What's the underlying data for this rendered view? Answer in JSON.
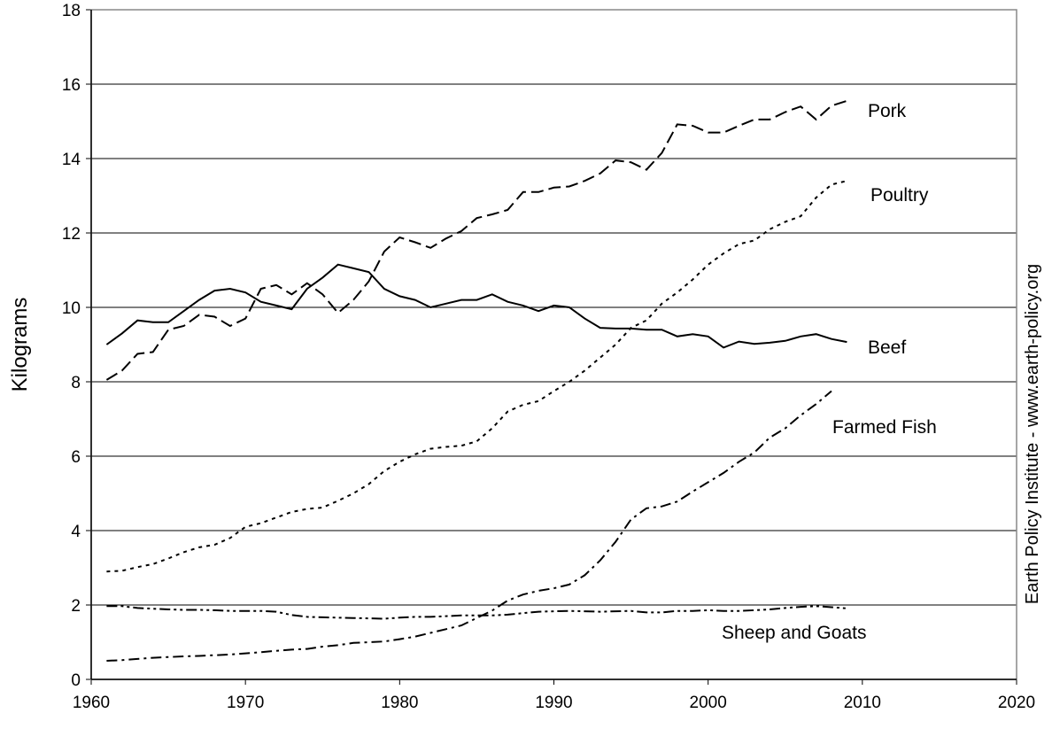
{
  "chart_data": {
    "type": "line",
    "y_label": "Kilograms",
    "source": "Earth Policy Institute - www.earth-policy.org",
    "x": [
      1961,
      1962,
      1963,
      1964,
      1965,
      1966,
      1967,
      1968,
      1969,
      1970,
      1971,
      1972,
      1973,
      1974,
      1975,
      1976,
      1977,
      1978,
      1979,
      1980,
      1981,
      1982,
      1983,
      1984,
      1985,
      1986,
      1987,
      1988,
      1989,
      1990,
      1991,
      1992,
      1993,
      1994,
      1995,
      1996,
      1997,
      1998,
      1999,
      2000,
      2001,
      2002,
      2003,
      2004,
      2005,
      2006,
      2007,
      2008,
      2009
    ],
    "xlim": [
      1960,
      2020
    ],
    "xticks": [
      1960,
      1970,
      1980,
      1990,
      2000,
      2010,
      2020
    ],
    "ylim": [
      0,
      18
    ],
    "yticks": [
      0,
      2,
      4,
      6,
      8,
      10,
      12,
      14,
      16,
      18
    ],
    "grid": true,
    "series": [
      {
        "name": "Beef",
        "color": "#000000",
        "dash": "solid",
        "values": [
          9.0,
          9.3,
          9.65,
          9.6,
          9.6,
          9.9,
          10.2,
          10.45,
          10.5,
          10.4,
          10.15,
          10.05,
          9.95,
          10.5,
          10.8,
          11.15,
          11.05,
          10.95,
          10.5,
          10.3,
          10.2,
          10.0,
          10.1,
          10.2,
          10.2,
          10.35,
          10.15,
          10.05,
          9.9,
          10.05,
          10.0,
          9.7,
          9.45,
          9.43,
          9.43,
          9.4,
          9.4,
          9.22,
          9.28,
          9.22,
          8.92,
          9.08,
          9.02,
          9.05,
          9.1,
          9.22,
          9.28,
          9.15,
          9.07
        ]
      },
      {
        "name": "Pork",
        "color": "#000000",
        "dash": "dash",
        "values": [
          8.05,
          8.3,
          8.75,
          8.8,
          9.4,
          9.5,
          9.8,
          9.75,
          9.5,
          9.7,
          10.5,
          10.6,
          10.35,
          10.65,
          10.35,
          9.85,
          10.2,
          10.7,
          11.5,
          11.88,
          11.75,
          11.6,
          11.85,
          12.05,
          12.4,
          12.5,
          12.62,
          13.1,
          13.1,
          13.22,
          13.25,
          13.4,
          13.6,
          13.95,
          13.9,
          13.7,
          14.15,
          14.92,
          14.88,
          14.7,
          14.7,
          14.88,
          15.05,
          15.05,
          15.25,
          15.4,
          15.05,
          15.42,
          15.55
        ]
      },
      {
        "name": "Poultry",
        "color": "#000000",
        "dash": "dot",
        "values": [
          2.9,
          2.92,
          3.02,
          3.1,
          3.25,
          3.42,
          3.55,
          3.62,
          3.8,
          4.1,
          4.2,
          4.35,
          4.5,
          4.58,
          4.62,
          4.8,
          5.0,
          5.25,
          5.6,
          5.85,
          6.05,
          6.2,
          6.25,
          6.28,
          6.4,
          6.75,
          7.2,
          7.38,
          7.48,
          7.75,
          8.0,
          8.3,
          8.65,
          9.0,
          9.45,
          9.65,
          10.1,
          10.4,
          10.75,
          11.15,
          11.45,
          11.7,
          11.8,
          12.1,
          12.3,
          12.45,
          12.95,
          13.3,
          13.4
        ]
      },
      {
        "name": "Farmed Fish",
        "color": "#000000",
        "dash": "dashdot",
        "values": [
          0.5,
          0.52,
          0.55,
          0.58,
          0.6,
          0.62,
          0.63,
          0.65,
          0.67,
          0.7,
          0.73,
          0.77,
          0.8,
          0.82,
          0.88,
          0.92,
          0.98,
          1.0,
          1.02,
          1.08,
          1.15,
          1.25,
          1.35,
          1.45,
          1.65,
          1.85,
          2.12,
          2.28,
          2.38,
          2.45,
          2.55,
          2.8,
          3.2,
          3.7,
          4.3,
          4.6,
          4.65,
          4.78,
          5.05,
          5.3,
          5.55,
          5.85,
          6.1,
          6.5,
          6.75,
          7.1,
          7.4,
          7.75,
          null
        ]
      },
      {
        "name": "Sheep and Goats",
        "color": "#000000",
        "dash": "dashdotdot",
        "values": [
          1.97,
          1.97,
          1.92,
          1.9,
          1.88,
          1.87,
          1.87,
          1.86,
          1.84,
          1.84,
          1.84,
          1.82,
          1.73,
          1.68,
          1.67,
          1.66,
          1.65,
          1.64,
          1.63,
          1.66,
          1.68,
          1.68,
          1.7,
          1.72,
          1.72,
          1.72,
          1.74,
          1.78,
          1.82,
          1.83,
          1.84,
          1.83,
          1.82,
          1.83,
          1.84,
          1.8,
          1.8,
          1.84,
          1.84,
          1.86,
          1.84,
          1.84,
          1.86,
          1.88,
          1.92,
          1.95,
          1.97,
          1.94,
          1.91
        ]
      }
    ]
  }
}
